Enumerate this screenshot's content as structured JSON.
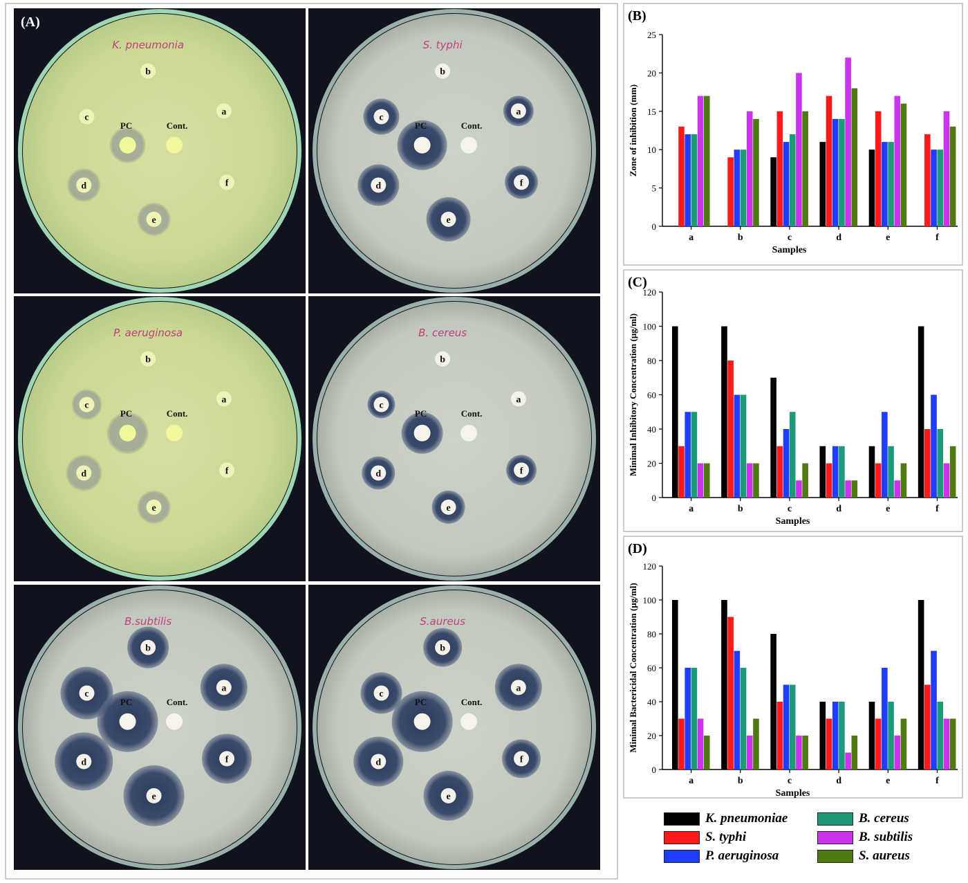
{
  "figure": {
    "panel_a": {
      "label": "(A)",
      "plates": [
        {
          "organism_handwritten": "K. pneumonia",
          "style": "yellow"
        },
        {
          "organism_handwritten": "S. typhi",
          "style": "gray"
        },
        {
          "organism_handwritten": "P. aeruginosa",
          "style": "yellow"
        },
        {
          "organism_handwritten": "B. cereus",
          "style": "gray"
        },
        {
          "organism_handwritten": "B.subtilis",
          "style": "gray"
        },
        {
          "organism_handwritten": "S.aureus",
          "style": "gray"
        }
      ],
      "well_labels": {
        "a": "a",
        "b": "b",
        "c": "c",
        "d": "d",
        "e": "e",
        "f": "f",
        "pc": "PC",
        "cont": "Cont."
      }
    }
  },
  "series_names": [
    "K. pneumoniae",
    "S. typhi",
    "P. aeruginosa",
    "B. cereus",
    "B. subtilis",
    "S. aureus"
  ],
  "series_colors": [
    "#000000",
    "#ff1a1a",
    "#1f3cff",
    "#1d9a7a",
    "#cc33ee",
    "#4f7a12"
  ],
  "legend": {
    "left": [
      "K. pneumoniae",
      "S. typhi",
      "P. aeruginosa"
    ],
    "right": [
      "B. cereus",
      "B. subtilis",
      "S. aureus"
    ]
  },
  "chart_data": [
    {
      "panel_label": "(B)",
      "type": "bar",
      "categories": [
        "a",
        "b",
        "c",
        "d",
        "e",
        "f"
      ],
      "xlabel": "Samples",
      "ylabel": "Zone of inhibition (mm)",
      "ylim": [
        0,
        25
      ],
      "yticks": [
        0,
        5,
        10,
        15,
        20,
        25
      ],
      "series": [
        {
          "name": "K. pneumoniae",
          "values": [
            0,
            0,
            9,
            11,
            10,
            0
          ]
        },
        {
          "name": "S. typhi",
          "values": [
            13,
            9,
            15,
            17,
            15,
            12
          ]
        },
        {
          "name": "P. aeruginosa",
          "values": [
            12,
            10,
            11,
            14,
            11,
            10
          ]
        },
        {
          "name": "B. cereus",
          "values": [
            12,
            10,
            12,
            14,
            11,
            10
          ]
        },
        {
          "name": "B. subtilis",
          "values": [
            17,
            15,
            20,
            22,
            17,
            15
          ]
        },
        {
          "name": "S. aureus",
          "values": [
            17,
            14,
            15,
            18,
            16,
            13
          ]
        }
      ]
    },
    {
      "panel_label": "(C)",
      "type": "bar",
      "categories": [
        "a",
        "b",
        "c",
        "d",
        "e",
        "f"
      ],
      "xlabel": "Samples",
      "ylabel": "Minimal Inhibitory Concentration (μg/ml)",
      "ylim": [
        0,
        120
      ],
      "yticks": [
        0,
        20,
        40,
        60,
        80,
        100,
        120
      ],
      "series": [
        {
          "name": "K. pneumoniae",
          "values": [
            100,
            100,
            70,
            30,
            30,
            100
          ]
        },
        {
          "name": "S. typhi",
          "values": [
            30,
            80,
            30,
            20,
            20,
            40
          ]
        },
        {
          "name": "P. aeruginosa",
          "values": [
            50,
            60,
            40,
            30,
            50,
            60
          ]
        },
        {
          "name": "B. cereus",
          "values": [
            50,
            60,
            50,
            30,
            30,
            40
          ]
        },
        {
          "name": "B. subtilis",
          "values": [
            20,
            20,
            10,
            10,
            10,
            20
          ]
        },
        {
          "name": "S. aureus",
          "values": [
            20,
            20,
            20,
            10,
            20,
            30
          ]
        }
      ]
    },
    {
      "panel_label": "(D)",
      "type": "bar",
      "categories": [
        "a",
        "b",
        "c",
        "d",
        "e",
        "f"
      ],
      "xlabel": "Samples",
      "ylabel": "Minimal Bactericidal Concentration (μg/ml)",
      "ylim": [
        0,
        120
      ],
      "yticks": [
        0,
        20,
        40,
        60,
        80,
        100,
        120
      ],
      "series": [
        {
          "name": "K. pneumoniae",
          "values": [
            100,
            100,
            80,
            40,
            40,
            100
          ]
        },
        {
          "name": "S. typhi",
          "values": [
            30,
            90,
            40,
            30,
            30,
            50
          ]
        },
        {
          "name": "P. aeruginosa",
          "values": [
            60,
            70,
            50,
            40,
            60,
            70
          ]
        },
        {
          "name": "B. cereus",
          "values": [
            60,
            60,
            50,
            40,
            40,
            40
          ]
        },
        {
          "name": "B. subtilis",
          "values": [
            30,
            20,
            20,
            10,
            20,
            30
          ]
        },
        {
          "name": "S. aureus",
          "values": [
            20,
            30,
            20,
            20,
            30,
            30
          ]
        }
      ]
    }
  ]
}
